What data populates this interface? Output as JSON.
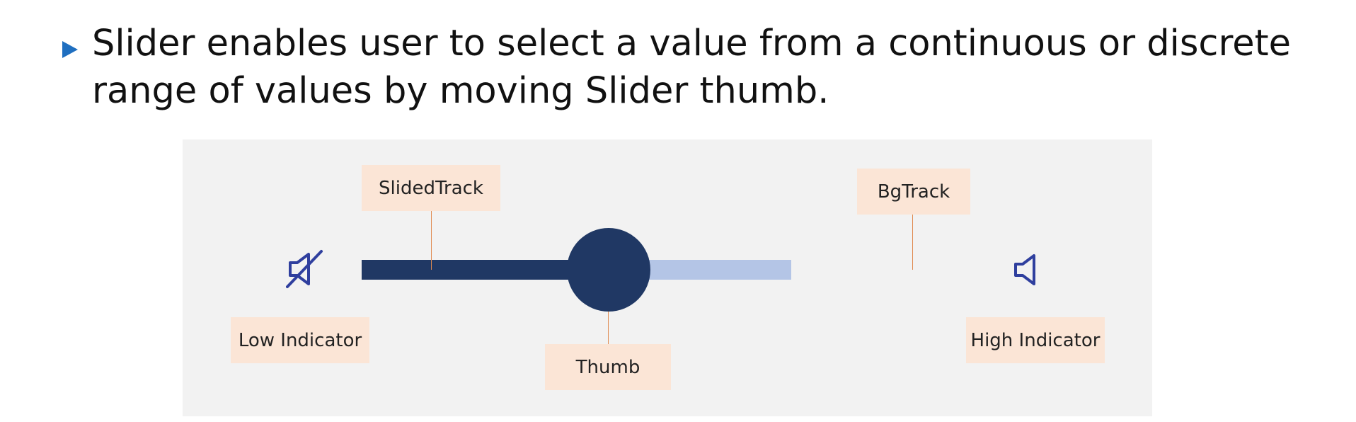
{
  "heading": {
    "text": "Slider enables user to select a value from a continuous or discrete range of values by moving Slider thumb."
  },
  "diagram": {
    "labels": {
      "slided_track": "SlidedTrack",
      "bg_track": "BgTrack",
      "low_indicator": "Low Indicator",
      "thumb": "Thumb",
      "high_indicator": "High Indicator"
    },
    "icons": {
      "low": "speaker-muted-icon",
      "high": "speaker-icon"
    },
    "colors": {
      "bullet": "#1f6fc0",
      "slided_track": "#203864",
      "thumb": "#203864",
      "bg_track": "#b4c5e6",
      "icon": "#2f3f9e",
      "label_bg": "#fbe5d6",
      "leader": "#e08a50",
      "panel_bg": "#f2f2f2"
    }
  }
}
